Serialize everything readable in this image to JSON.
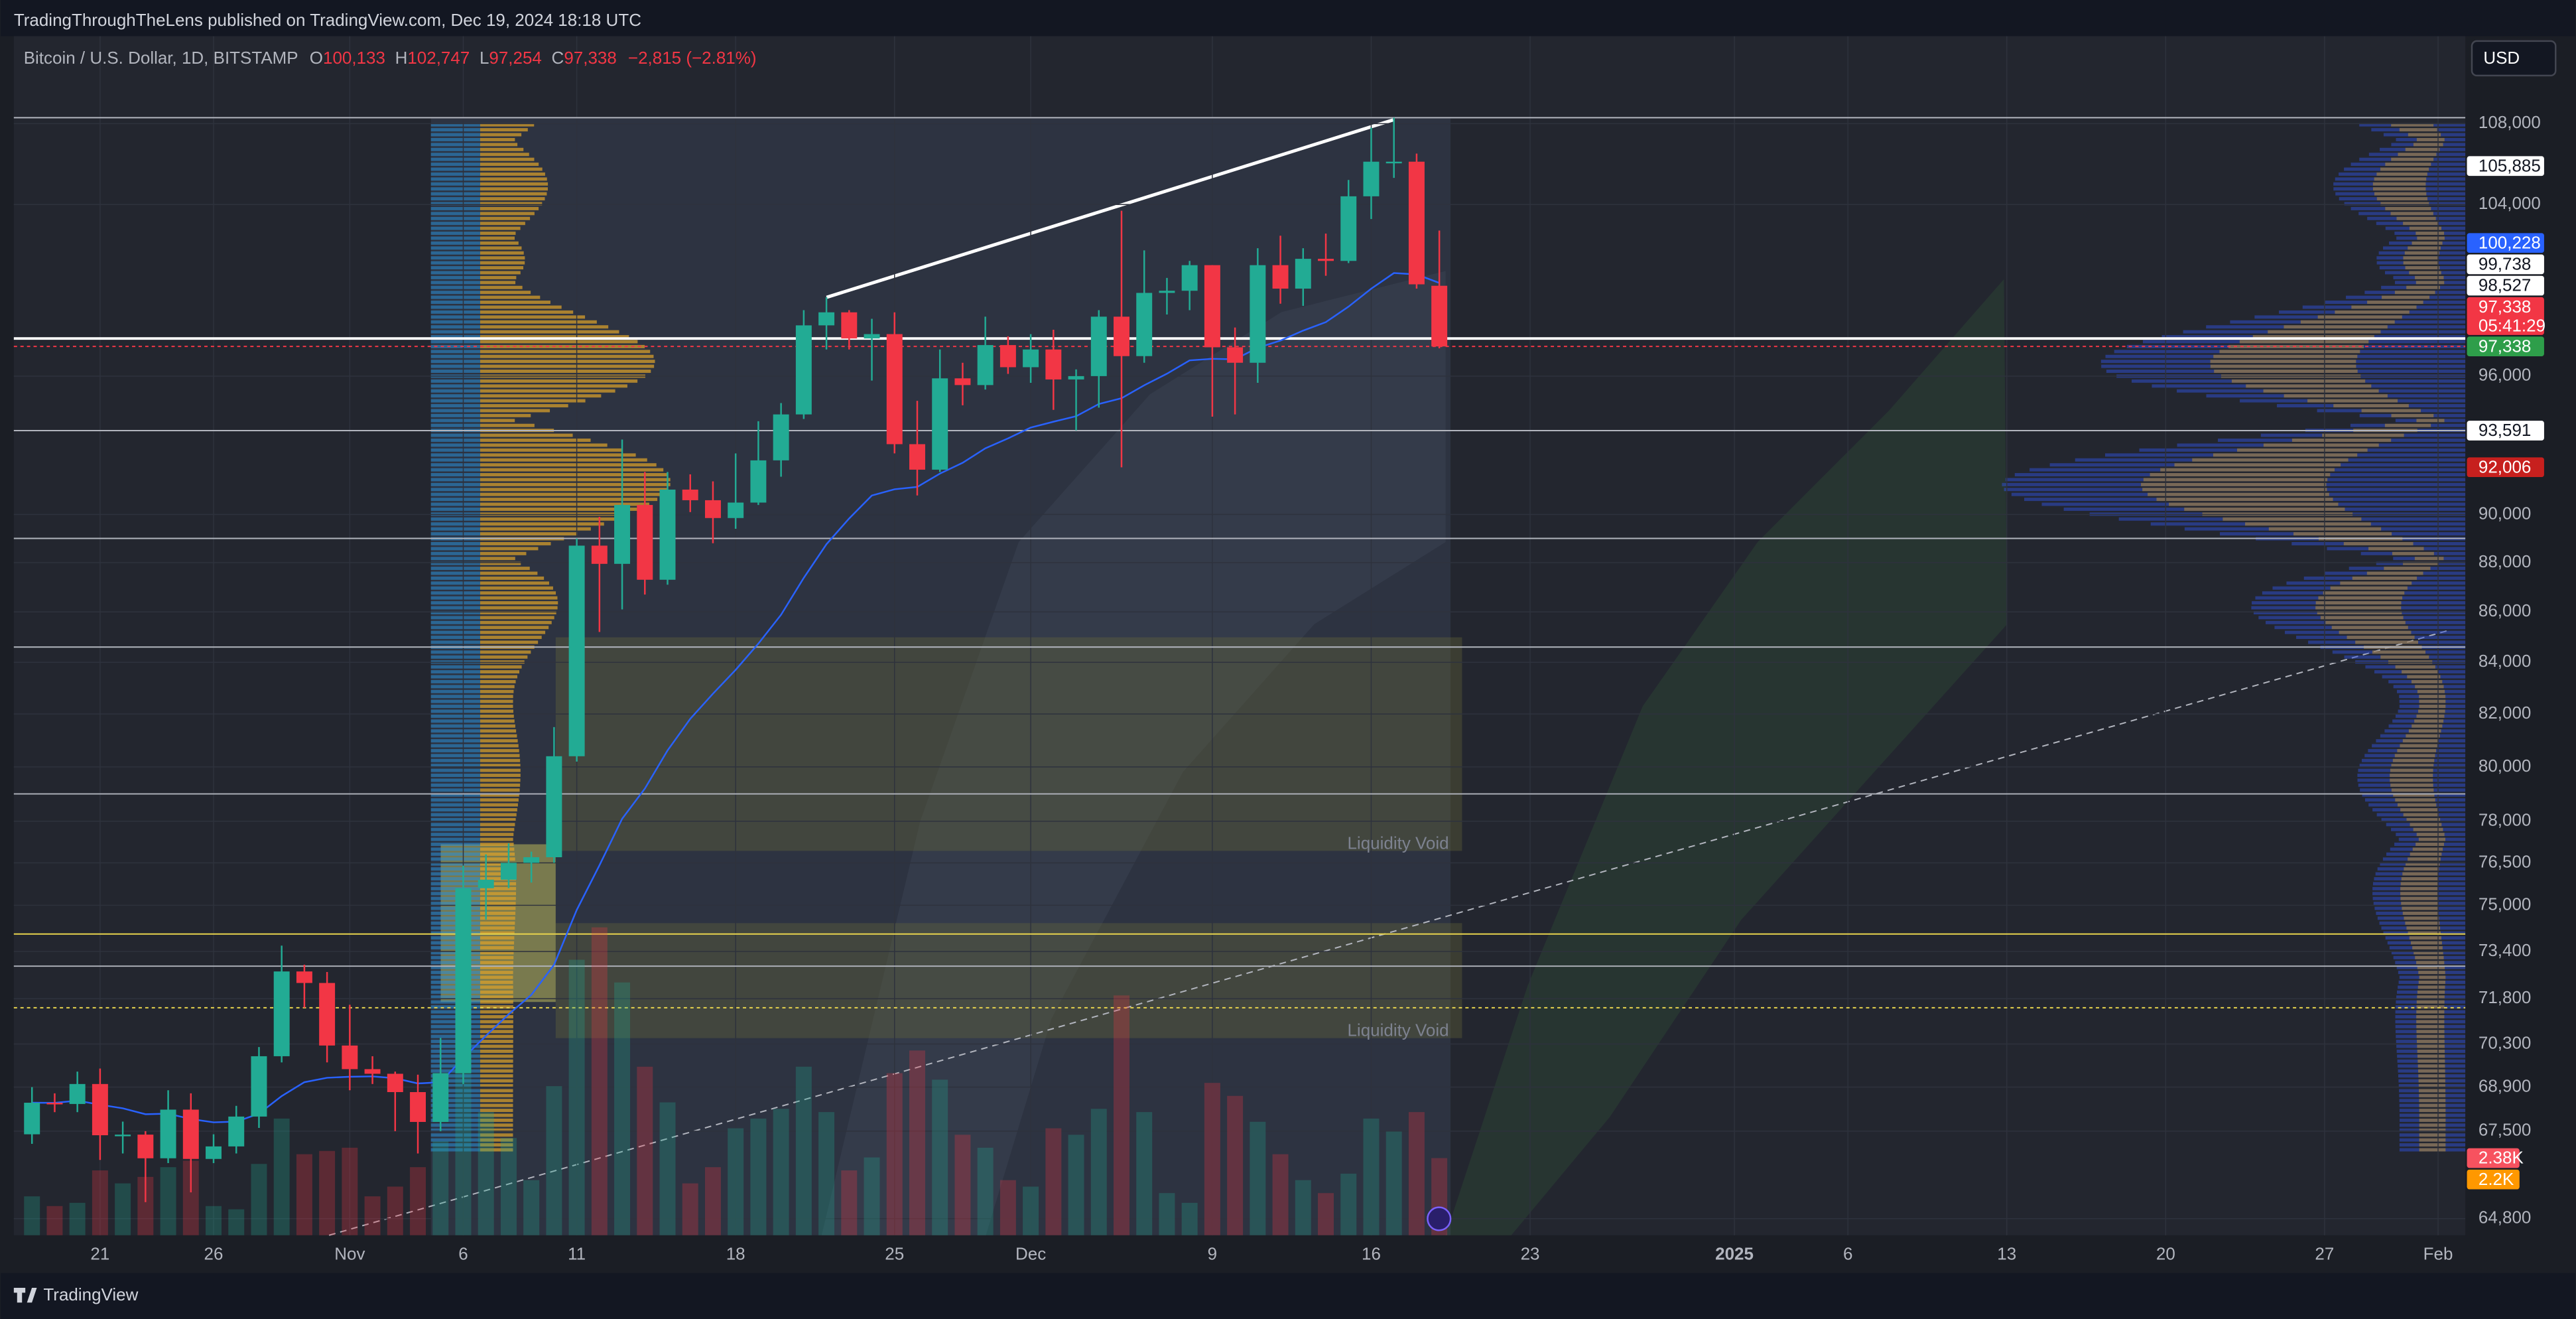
{
  "header": {
    "published": "TradingThroughTheLens published on TradingView.com, Dec 19, 2024 18:18 UTC"
  },
  "legend": {
    "symbol": "Bitcoin / U.S. Dollar, 1D, BITSTAMP",
    "o_label": "O",
    "open": "100,133",
    "h_label": "H",
    "high": "102,747",
    "l_label": "L",
    "low": "97,254",
    "c_label": "C",
    "close": "97,338",
    "change": "−2,815 (−2.81%)"
  },
  "currency_button": "USD",
  "footer": {
    "brand": "TradingView"
  },
  "chart_data": {
    "type": "candlestick",
    "log_scale": true,
    "up_color": "#22ab94",
    "down_color": "#f23645",
    "ylim": [
      64300,
      112500
    ],
    "yticks": [
      {
        "value": 108000,
        "label": "108,000"
      },
      {
        "value": 104000,
        "label": "104,000"
      },
      {
        "value": 96000,
        "label": "96,000"
      },
      {
        "value": 90000,
        "label": "90,000"
      },
      {
        "value": 88000,
        "label": "88,000"
      },
      {
        "value": 86000,
        "label": "86,000"
      },
      {
        "value": 84000,
        "label": "84,000"
      },
      {
        "value": 82000,
        "label": "82,000"
      },
      {
        "value": 80000,
        "label": "80,000"
      },
      {
        "value": 78000,
        "label": "78,000"
      },
      {
        "value": 76500,
        "label": "76,500"
      },
      {
        "value": 75000,
        "label": "75,000"
      },
      {
        "value": 73400,
        "label": "73,400"
      },
      {
        "value": 71800,
        "label": "71,800"
      },
      {
        "value": 70300,
        "label": "70,300"
      },
      {
        "value": 68900,
        "label": "68,900"
      },
      {
        "value": 67500,
        "label": "67,500"
      },
      {
        "value": 64800,
        "label": "64,800"
      }
    ],
    "xlim": [
      -3.8,
      104.2
    ],
    "xticks": [
      {
        "value": 0,
        "label": "21"
      },
      {
        "value": 5,
        "label": "26"
      },
      {
        "value": 11,
        "label": "Nov"
      },
      {
        "value": 16,
        "label": "6"
      },
      {
        "value": 21,
        "label": "11"
      },
      {
        "value": 28,
        "label": "18"
      },
      {
        "value": 35,
        "label": "25"
      },
      {
        "value": 41,
        "label": "Dec"
      },
      {
        "value": 49,
        "label": "9"
      },
      {
        "value": 56,
        "label": "16"
      },
      {
        "value": 63,
        "label": "23"
      },
      {
        "value": 72,
        "label": "2025"
      },
      {
        "value": 77,
        "label": "6"
      },
      {
        "value": 84,
        "label": "13"
      },
      {
        "value": 91,
        "label": "20"
      },
      {
        "value": 98,
        "label": "27"
      },
      {
        "value": 103,
        "label": "Feb"
      }
    ],
    "x": [
      -3,
      -2,
      -1,
      0,
      1,
      2,
      3,
      4,
      5,
      6,
      7,
      8,
      9,
      10,
      11,
      12,
      13,
      14,
      15,
      16,
      17,
      18,
      19,
      20,
      21,
      22,
      23,
      24,
      25,
      26,
      27,
      28,
      29,
      30,
      31,
      32,
      33,
      34,
      35,
      36,
      37,
      38,
      39,
      40,
      41,
      42,
      43,
      44,
      45,
      46,
      47,
      48,
      49,
      50,
      51,
      52,
      53,
      54,
      55,
      56,
      57,
      58,
      59
    ],
    "ohlc": [
      [
        67400,
        68900,
        67100,
        68400
      ],
      [
        68400,
        68700,
        68100,
        68360
      ],
      [
        68360,
        69400,
        68100,
        69000
      ],
      [
        69000,
        69500,
        66600,
        67370
      ],
      [
        67370,
        67800,
        66800,
        67390
      ],
      [
        67390,
        67500,
        65300,
        66650
      ],
      [
        66650,
        68800,
        66500,
        68180
      ],
      [
        68180,
        68700,
        65600,
        66630
      ],
      [
        66630,
        67400,
        66500,
        67020
      ],
      [
        67020,
        68300,
        66800,
        67960
      ],
      [
        67960,
        70200,
        67600,
        69900
      ],
      [
        69900,
        73600,
        69700,
        72720
      ],
      [
        72720,
        72950,
        71500,
        72330
      ],
      [
        72330,
        72700,
        69700,
        70250
      ],
      [
        70250,
        71600,
        68800,
        69480
      ],
      [
        69480,
        69900,
        69000,
        69330
      ],
      [
        69330,
        69400,
        67500,
        68740
      ],
      [
        68740,
        69300,
        66800,
        67790
      ],
      [
        67790,
        70500,
        67500,
        69350
      ],
      [
        69350,
        76400,
        69000,
        75600
      ],
      [
        75600,
        76800,
        74500,
        75900
      ],
      [
        75900,
        77200,
        75600,
        76500
      ],
      [
        76500,
        76900,
        75800,
        76700
      ],
      [
        76700,
        81500,
        76500,
        80400
      ],
      [
        80400,
        89000,
        80200,
        88700
      ],
      [
        88700,
        89900,
        85200,
        87950
      ],
      [
        87950,
        93200,
        86100,
        90400
      ],
      [
        90400,
        91800,
        86700,
        87300
      ],
      [
        87300,
        91800,
        87100,
        91050
      ],
      [
        91050,
        91700,
        90100,
        90600
      ],
      [
        90600,
        91400,
        88800,
        89850
      ],
      [
        89850,
        92600,
        89400,
        90500
      ],
      [
        90500,
        94000,
        90400,
        92300
      ],
      [
        92300,
        94800,
        91600,
        94300
      ],
      [
        94300,
        99000,
        94100,
        98300
      ],
      [
        98300,
        99600,
        97200,
        98900
      ],
      [
        98900,
        99000,
        97200,
        97700
      ],
      [
        97700,
        98600,
        95800,
        97900
      ],
      [
        97900,
        98900,
        92600,
        93000
      ],
      [
        93000,
        94900,
        90800,
        91900
      ],
      [
        91900,
        97200,
        91800,
        95900
      ],
      [
        95900,
        96600,
        94700,
        95600
      ],
      [
        95600,
        98700,
        95400,
        97400
      ],
      [
        97400,
        97800,
        96100,
        96400
      ],
      [
        96400,
        97900,
        95700,
        97200
      ],
      [
        97200,
        98100,
        94500,
        95850
      ],
      [
        95850,
        96300,
        93600,
        96000
      ],
      [
        96000,
        99000,
        94600,
        98700
      ],
      [
        98700,
        103700,
        92000,
        96900
      ],
      [
        96900,
        101800,
        96600,
        99800
      ],
      [
        99800,
        100500,
        98800,
        99900
      ],
      [
        99900,
        101300,
        99000,
        101100
      ],
      [
        101100,
        101100,
        94200,
        97300
      ],
      [
        97300,
        98200,
        94300,
        96600
      ],
      [
        96600,
        101900,
        95700,
        101100
      ],
      [
        101100,
        102500,
        99300,
        100000
      ],
      [
        100000,
        101900,
        99200,
        101400
      ],
      [
        101400,
        102600,
        100600,
        101300
      ],
      [
        101300,
        105200,
        101200,
        104400
      ],
      [
        104400,
        107800,
        103300,
        106100
      ],
      [
        106100,
        108300,
        105300,
        106100
      ],
      [
        106100,
        106500,
        100000,
        100200
      ],
      [
        100133,
        102747,
        97254,
        97338
      ]
    ],
    "volume": [
      1200,
      900,
      1000,
      2000,
      1600,
      1800,
      2100,
      2300,
      900,
      800,
      2200,
      3600,
      2500,
      2600,
      2700,
      1200,
      1500,
      2100,
      2900,
      6000,
      3800,
      3000,
      1700,
      4600,
      8500,
      9500,
      7800,
      5200,
      4100,
      1600,
      2100,
      3300,
      3600,
      3900,
      5200,
      3800,
      2000,
      2400,
      5000,
      5700,
      4800,
      3100,
      2700,
      1700,
      1500,
      3300,
      3100,
      3900,
      7400,
      3800,
      1300,
      1000,
      4700,
      4300,
      3500,
      2500,
      1700,
      1300,
      1900,
      3600,
      3200,
      3800,
      2380
    ],
    "volume_lim": [
      0,
      37000
    ],
    "levels": [
      {
        "value": 108300,
        "color": "#b2b5be",
        "dash": false
      },
      {
        "value": 97700,
        "color": "#ffffff",
        "dash": false
      },
      {
        "value": 97338,
        "color": "#f23645",
        "dash": true
      },
      {
        "value": 93591,
        "color": "#b2b5be",
        "dash": false
      },
      {
        "value": 89000,
        "color": "#b2b5be",
        "dash": false
      },
      {
        "value": 84600,
        "color": "#b2b5be",
        "dash": false
      },
      {
        "value": 79000,
        "color": "#b2b5be",
        "dash": false
      },
      {
        "value": 74000,
        "color": "#e8d44d",
        "dash": false
      },
      {
        "value": 72900,
        "color": "#b2b5be",
        "dash": false
      },
      {
        "value": 71500,
        "color": "#e8d44d",
        "dash": true
      }
    ],
    "price_tags": [
      {
        "value": 105885,
        "label": "105,885",
        "color": "#ffffff",
        "text_color": "#131722"
      },
      {
        "value": 100228,
        "label": "100,228",
        "color": "#2962ff",
        "text_color": "#ffffff"
      },
      {
        "value": 99738,
        "label": "99,738",
        "color": "#ffffff",
        "text_color": "#131722"
      },
      {
        "value": 98527,
        "label": "98,527",
        "color": "#ffffff",
        "text_color": "#131722"
      },
      {
        "value": 97338,
        "label": "97,338",
        "color": "#f23645",
        "text_color": "#ffffff",
        "countdown": "05:41:29"
      },
      {
        "value": 97338,
        "label": "97,338",
        "color": "#2e9e4a",
        "text_color": "#ffffff"
      },
      {
        "value": 93591,
        "label": "93,591",
        "color": "#ffffff",
        "text_color": "#131722"
      },
      {
        "value": 92006,
        "label": "92,006",
        "color": "#c7201e",
        "text_color": "#ffffff"
      }
    ],
    "volume_tags": [
      {
        "value": 2380,
        "label": "2.38K",
        "color": "#f7525f"
      },
      {
        "value": 2200,
        "label": "2.2K",
        "color": "#ff9800"
      }
    ],
    "annotations": [
      "Liquidity Void",
      "Liquidity Void"
    ]
  }
}
